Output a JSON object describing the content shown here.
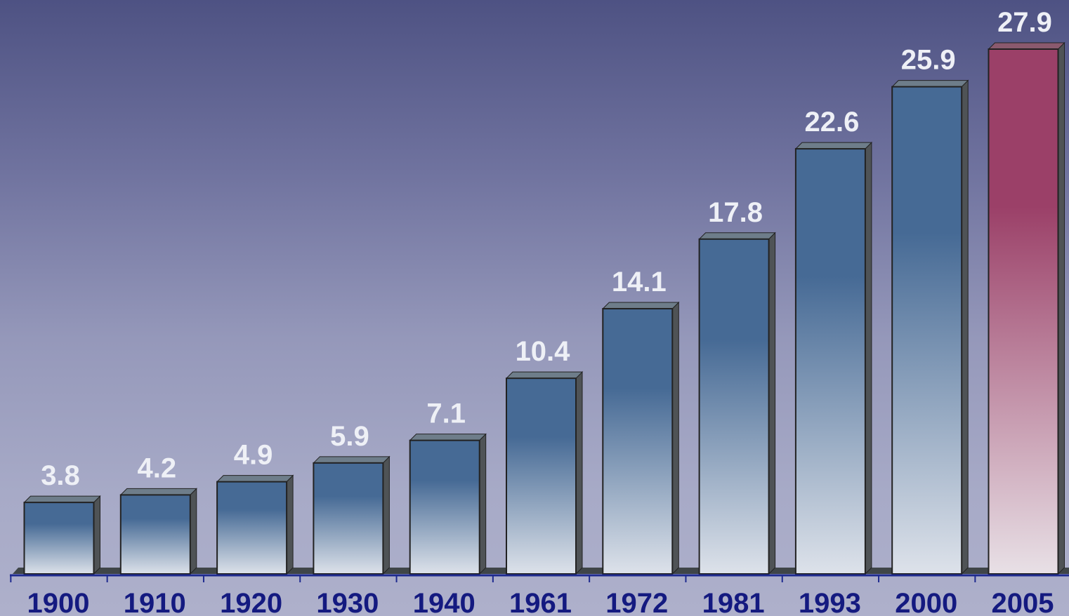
{
  "colors": {
    "bar_top": "#466a95",
    "bar_bottom": "#dde2ea",
    "highlight_top": "#9b4068",
    "highlight_bottom": "#e8e0e6",
    "bar_side": "#4f5356",
    "axis": "#1e2a8f",
    "label_value": "#eef0f6",
    "label_category": "#141a80"
  },
  "chart_data": {
    "type": "bar",
    "categories": [
      "1900",
      "1910",
      "1920",
      "1930",
      "1940",
      "1961",
      "1972",
      "1981",
      "1993",
      "2000",
      "2005"
    ],
    "values": [
      3.8,
      4.2,
      4.9,
      5.9,
      7.1,
      10.4,
      14.1,
      17.8,
      22.6,
      25.9,
      27.9
    ],
    "value_labels": [
      "3.8",
      "4.2",
      "4.9",
      "5.9",
      "7.1",
      "10.4",
      "14.1",
      "17.8",
      "22.6",
      "25.9",
      "27.9"
    ],
    "highlight_index": 10,
    "title": "",
    "xlabel": "",
    "ylabel": "",
    "ylim": [
      0,
      29.6
    ],
    "grid": false,
    "legend": "none"
  }
}
